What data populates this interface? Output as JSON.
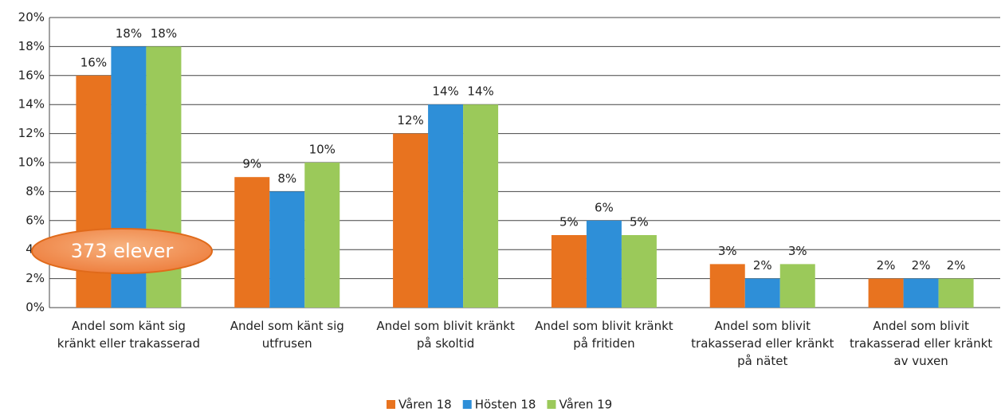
{
  "chart_data": {
    "type": "bar",
    "categories": [
      "Andel som känt sig kränkt eller trakasserad",
      "Andel som känt sig utfrusen",
      "Andel som blivit kränkt på skoltid",
      "Andel som blivit kränkt på fritiden",
      "Andel som blivit trakasserad eller kränkt på nätet",
      "Andel som blivit trakasserad eller kränkt av vuxen"
    ],
    "series": [
      {
        "name": "Våren 18",
        "color": "#e8731f",
        "values": [
          16,
          9,
          12,
          5,
          3,
          2
        ],
        "value_labels": [
          "16%",
          "9%",
          "12%",
          "5%",
          "3%",
          "2%"
        ]
      },
      {
        "name": "Hösten 18",
        "color": "#2e8fd8",
        "values": [
          18,
          8,
          14,
          6,
          2,
          2
        ],
        "value_labels": [
          "18%",
          "8%",
          "14%",
          "6%",
          "2%",
          "2%"
        ]
      },
      {
        "name": "Våren 19",
        "color": "#9bc95a",
        "values": [
          18,
          10,
          14,
          5,
          3,
          2
        ],
        "value_labels": [
          "18%",
          "10%",
          "14%",
          "5%",
          "3%",
          "2%"
        ]
      }
    ],
    "ylim": [
      0,
      20
    ],
    "yticks": [
      {
        "value": 0,
        "label": "0%"
      },
      {
        "value": 2,
        "label": "2%"
      },
      {
        "value": 4,
        "label": "4%"
      },
      {
        "value": 6,
        "label": "6%"
      },
      {
        "value": 8,
        "label": "8%"
      },
      {
        "value": 10,
        "label": "10%"
      },
      {
        "value": 12,
        "label": "12%"
      },
      {
        "value": 14,
        "label": "14%"
      },
      {
        "value": 16,
        "label": "16%"
      },
      {
        "value": 18,
        "label": "18%"
      },
      {
        "value": 20,
        "label": "20%"
      }
    ],
    "grid": true,
    "annotation": "373 elever",
    "legend": "bottom"
  }
}
